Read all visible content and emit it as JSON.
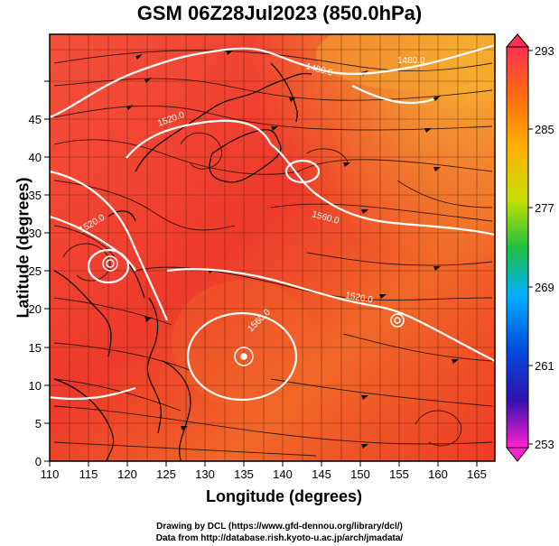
{
  "title": "GSM 06Z28Jul2023 (850.0hPa)",
  "map": {
    "xlabel": "Longitude (degrees)",
    "ylabel": "Latitude  (degrees)",
    "x_ticks": [
      "110",
      "115",
      "120",
      "125",
      "130",
      "135",
      "140",
      "145",
      "150",
      "155",
      "160",
      "165"
    ],
    "y_ticks": [
      "0",
      "5",
      "10",
      "15",
      "20",
      "25",
      "30",
      "35",
      "40",
      "45"
    ],
    "contour_labels": [
      "1480.0",
      "1520.0",
      "1560.0",
      "1520.0",
      "1520.0",
      "1560.0",
      "1480.0"
    ]
  },
  "colorbar": {
    "ticks": [
      "293",
      "285",
      "277",
      "269",
      "261",
      "253"
    ],
    "colors": [
      "#ff3a5a",
      "#ff7a1a",
      "#ffd000",
      "#9be000",
      "#00c060",
      "#00a8ff",
      "#0030d0",
      "#6010c0",
      "#ff20d0"
    ]
  },
  "credits": {
    "line1": "Drawing by DCL (https://www.gfd-dennou.org/library/dcl/)",
    "line2": "Data from http://database.rish.kyoto-u.ac.jp/arch/jmadata/"
  }
}
